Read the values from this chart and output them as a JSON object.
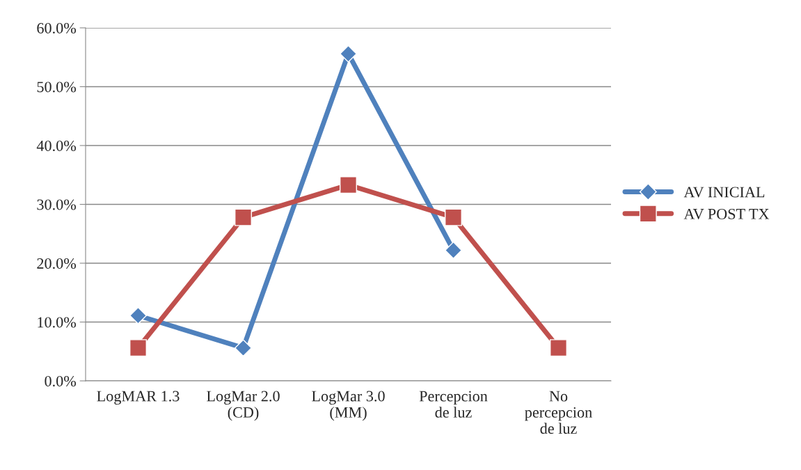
{
  "chart_data": {
    "type": "line",
    "categories": [
      "LogMAR 1.3",
      "LogMar 2.0\n(CD)",
      "LogMar 3.0\n(MM)",
      "Percepcion\nde luz",
      "No\npercepcion\nde luz"
    ],
    "series": [
      {
        "name": "AV INICIAL",
        "color": "#4f81bd",
        "marker": "diamond",
        "values": [
          11.1,
          5.6,
          55.6,
          22.2,
          null
        ]
      },
      {
        "name": "AV POST TX",
        "color": "#c0504d",
        "marker": "square",
        "values": [
          5.6,
          27.8,
          33.3,
          27.8,
          5.6
        ]
      }
    ],
    "ylim": [
      0,
      60
    ],
    "yticks": [
      {
        "value": 0,
        "label": "0.0%"
      },
      {
        "value": 10,
        "label": "10.0%"
      },
      {
        "value": 20,
        "label": "20.0%"
      },
      {
        "value": 30,
        "label": "30.0%"
      },
      {
        "value": 40,
        "label": "40.0%"
      },
      {
        "value": 50,
        "label": "50.0%"
      },
      {
        "value": 60,
        "label": "60.0%"
      }
    ],
    "grid": "y",
    "legend": "right"
  }
}
